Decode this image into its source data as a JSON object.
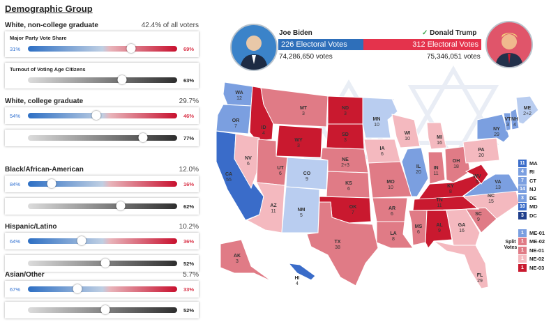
{
  "section_title": "Demographic Group",
  "groups": [
    {
      "name": "White, non-college graduate",
      "share": "42.4% of all voters",
      "vote_title": "Major Party Vote Share",
      "dem": "31%",
      "rep": "69%",
      "dem_frac": 0.31,
      "turnout_title": "Turnout of Voting Age Citizens",
      "turnout": "63%",
      "turnout_frac": 0.63
    },
    {
      "name": "White, college graduate",
      "share": "29.7%",
      "dem": "54%",
      "rep": "46%",
      "dem_frac": 0.54,
      "turnout": "77%",
      "turnout_frac": 0.77
    },
    {
      "name": "Black/African-American",
      "share": "12.0%",
      "dem": "84%",
      "rep": "16%",
      "dem_frac": 0.84,
      "turnout": "62%",
      "turnout_frac": 0.62
    },
    {
      "name": "Hispanic/Latino",
      "share": "10.2%",
      "dem": "64%",
      "rep": "36%",
      "dem_frac": 0.64,
      "turnout": "52%",
      "turnout_frac": 0.52
    },
    {
      "name": "Asian/Other",
      "share": "5.7%",
      "dem": "67%",
      "rep": "33%",
      "dem_frac": 0.67,
      "turnout": "52%",
      "turnout_frac": 0.52
    }
  ],
  "candidates": {
    "dem": {
      "name": "Joe Biden",
      "ev": "226 Electoral Votes",
      "votes": "74,286,650 votes",
      "color": "#2e6fba"
    },
    "rep": {
      "name": "Donald Trump",
      "ev": "312 Electoral Votes",
      "votes": "75,346,051 votes",
      "color": "#e4334c",
      "winner_mark": "✓"
    }
  },
  "colors": {
    "safe_d": "#3a6cc9",
    "likely_d": "#7b9fe0",
    "lean_d": "#b9cdf0",
    "lean_r": "#f4b9bf",
    "likely_r": "#e07b86",
    "safe_r": "#c9192f"
  },
  "states": [
    {
      "abbr": "WA",
      "ev": "12"
    },
    {
      "abbr": "OR",
      "ev": "7"
    },
    {
      "abbr": "CA",
      "ev": "55"
    },
    {
      "abbr": "ID",
      "ev": "4"
    },
    {
      "abbr": "NV",
      "ev": "6"
    },
    {
      "abbr": "MT",
      "ev": "3"
    },
    {
      "abbr": "WY",
      "ev": "3"
    },
    {
      "abbr": "UT",
      "ev": "6"
    },
    {
      "abbr": "AZ",
      "ev": "11"
    },
    {
      "abbr": "CO",
      "ev": "9"
    },
    {
      "abbr": "NM",
      "ev": "5"
    },
    {
      "abbr": "ND",
      "ev": "3"
    },
    {
      "abbr": "SD",
      "ev": "3"
    },
    {
      "abbr": "NE",
      "ev": "2+3"
    },
    {
      "abbr": "KS",
      "ev": "6"
    },
    {
      "abbr": "OK",
      "ev": "7"
    },
    {
      "abbr": "TX",
      "ev": "38"
    },
    {
      "abbr": "MN",
      "ev": "10"
    },
    {
      "abbr": "IA",
      "ev": "6"
    },
    {
      "abbr": "MO",
      "ev": "10"
    },
    {
      "abbr": "AR",
      "ev": "6"
    },
    {
      "abbr": "LA",
      "ev": "8"
    },
    {
      "abbr": "WI",
      "ev": "10"
    },
    {
      "abbr": "IL",
      "ev": "20"
    },
    {
      "abbr": "MI",
      "ev": "16"
    },
    {
      "abbr": "IN",
      "ev": "11"
    },
    {
      "abbr": "OH",
      "ev": "18"
    },
    {
      "abbr": "KY",
      "ev": "8"
    },
    {
      "abbr": "TN",
      "ev": "11"
    },
    {
      "abbr": "MS",
      "ev": "6"
    },
    {
      "abbr": "AL",
      "ev": "9"
    },
    {
      "abbr": "GA",
      "ev": "16"
    },
    {
      "abbr": "FL",
      "ev": "29"
    },
    {
      "abbr": "SC",
      "ev": "9"
    },
    {
      "abbr": "NC",
      "ev": "15"
    },
    {
      "abbr": "VA",
      "ev": "13"
    },
    {
      "abbr": "WV",
      "ev": "5"
    },
    {
      "abbr": "PA",
      "ev": "20"
    },
    {
      "abbr": "NY",
      "ev": "29"
    },
    {
      "abbr": "VT",
      "ev": "3"
    },
    {
      "abbr": "NH",
      "ev": "4"
    },
    {
      "abbr": "ME",
      "ev": "2+2"
    },
    {
      "abbr": "AK",
      "ev": "3"
    },
    {
      "abbr": "HI",
      "ev": "4"
    }
  ],
  "small_states": [
    {
      "abbr": "MA",
      "ev": "11",
      "color": "#3a6cc9"
    },
    {
      "abbr": "RI",
      "ev": "4",
      "color": "#7b9fe0"
    },
    {
      "abbr": "CT",
      "ev": "7",
      "color": "#7b9fe0"
    },
    {
      "abbr": "NJ",
      "ev": "14",
      "color": "#7b9fe0"
    },
    {
      "abbr": "DE",
      "ev": "3",
      "color": "#7b9fe0"
    },
    {
      "abbr": "MD",
      "ev": "10",
      "color": "#3a6cc9"
    },
    {
      "abbr": "DC",
      "ev": "3",
      "color": "#203f8c"
    }
  ],
  "split_votes_label": "Split Votes",
  "split_votes": [
    {
      "abbr": "ME-01",
      "ev": "1",
      "color": "#7b9fe0"
    },
    {
      "abbr": "ME-02",
      "ev": "1",
      "color": "#e07b86"
    },
    {
      "abbr": "NE-01",
      "ev": "1",
      "color": "#e07b86"
    },
    {
      "abbr": "NE-02",
      "ev": "1",
      "color": "#f4b9bf"
    },
    {
      "abbr": "NE-03",
      "ev": "1",
      "color": "#c9192f"
    }
  ]
}
